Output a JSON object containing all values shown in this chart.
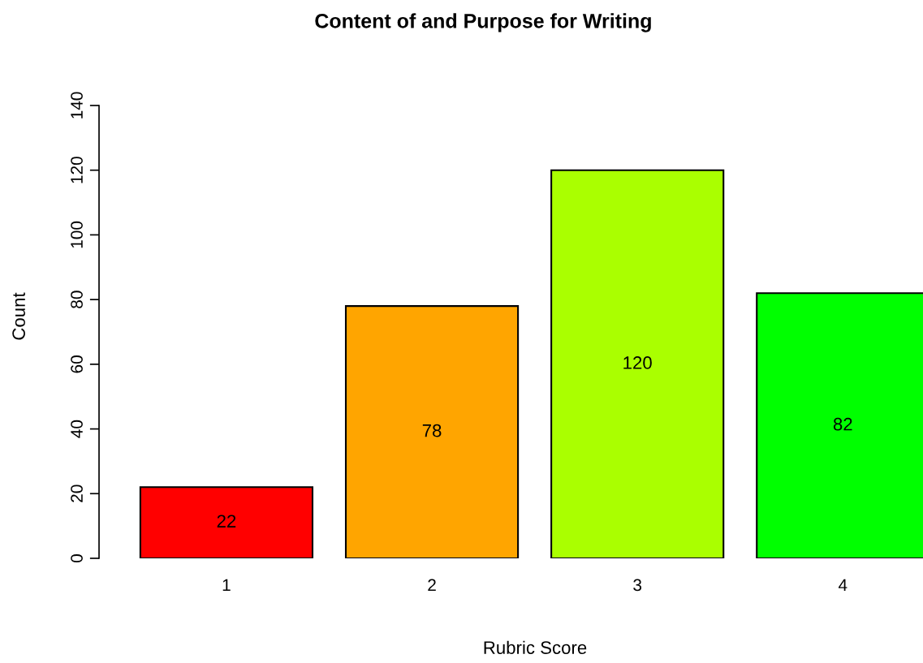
{
  "chart_data": {
    "type": "bar",
    "title": "Content of and Purpose for Writing",
    "xlabel": "Rubric Score",
    "ylabel": "Count",
    "categories": [
      "1",
      "2",
      "3",
      "4"
    ],
    "values": [
      22,
      78,
      120,
      82
    ],
    "colors": [
      "#ff0000",
      "#ffa500",
      "#aaff00",
      "#00ff00"
    ],
    "ylim": [
      0,
      140
    ],
    "yticks": [
      0,
      20,
      40,
      60,
      80,
      100,
      120,
      140
    ],
    "data_labels": true,
    "grid": false,
    "legend": false
  }
}
